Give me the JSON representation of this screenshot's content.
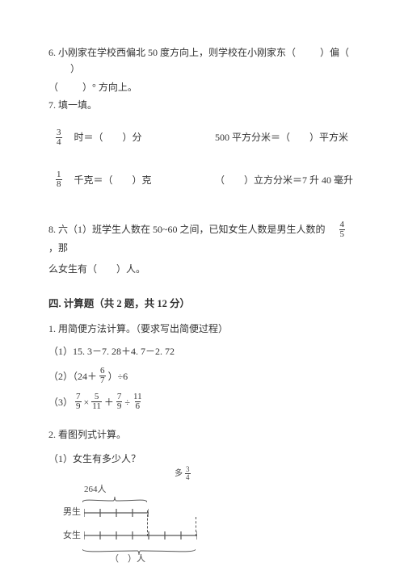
{
  "q6": {
    "text_a": "6. 小刚家在学校西偏北 50 度方向上，则学校在小刚家东（",
    "blank1": "　　",
    "mid1": "）偏（",
    "blank2": "　　",
    "mid2": "）",
    "line2_a": "（",
    "line2_blank": "　　",
    "line2_b": "）°  方向上。"
  },
  "q7": {
    "title": "7. 填一填。",
    "r1a_frac_num": "3",
    "r1a_frac_den": "4",
    "r1a_text": " 时＝（　　）分",
    "r1b_text": "500 平方分米＝（　　）平方米",
    "r2a_frac_num": "1",
    "r2a_frac_den": "8",
    "r2a_text": " 千克＝（　　）克",
    "r2b_text": "（　　）立方分米＝7 升 40 毫升"
  },
  "q8": {
    "text_a": "8. 六（1）班学生人数在 50~60 之间，已知女生人数是男生人数的",
    "frac_num": "4",
    "frac_den": "5",
    "text_b": "，那",
    "line2": "么女生有（　　）人。"
  },
  "section4": {
    "title": "四. 计算题（共 2 题，共 12 分）",
    "q1_title": "1. 用简便方法计算。（要求写出简便过程）",
    "c1": "（1）15. 3－7. 28＋4. 7－2. 72",
    "c2_a": "（2）（24＋",
    "c2_frac_num": "6",
    "c2_frac_den": "7",
    "c2_b": "）÷6",
    "c3_a": "（3）",
    "c3_f1n": "7",
    "c3_f1d": "9",
    "c3_m1": "×",
    "c3_f2n": "5",
    "c3_f2d": "11",
    "c3_m2": "＋",
    "c3_f3n": "7",
    "c3_f3d": "9",
    "c3_m3": "÷",
    "c3_f4n": "11",
    "c3_f4d": "6",
    "q2_title": "2. 看图列式计算。",
    "q2_sub": "（1）女生有多少人？"
  },
  "diagram": {
    "top_label": "264人",
    "boys_label": "男生",
    "girls_label": "女生",
    "more_text": "多",
    "more_frac_num": "3",
    "more_frac_den": "4",
    "bottom_label": "（　）人",
    "stroke": "#555555",
    "boys_segments": 4,
    "girls_segments": 7,
    "seg_w": 20
  }
}
